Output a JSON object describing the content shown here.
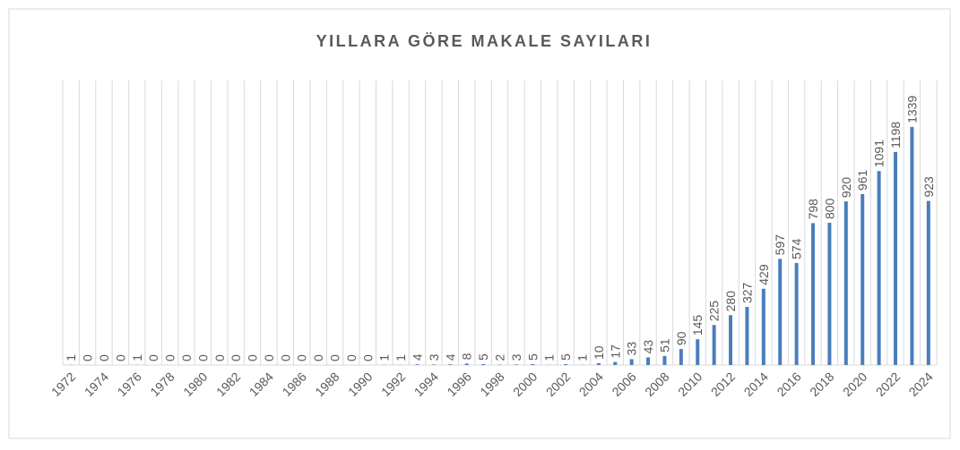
{
  "chart_data": {
    "type": "bar",
    "title": "YILLARA GÖRE MAKALE SAYILARI",
    "categories": [
      "1972",
      null,
      "1974",
      null,
      "1976",
      null,
      "1978",
      null,
      "1980",
      null,
      "1982",
      null,
      "1984",
      null,
      "1986",
      null,
      "1988",
      null,
      "1990",
      null,
      "1992",
      null,
      "1994",
      null,
      "1996",
      null,
      "1998",
      null,
      "2000",
      null,
      "2002",
      null,
      "2004",
      null,
      "2006",
      null,
      "2008",
      null,
      "2010",
      null,
      "2012",
      null,
      "2014",
      null,
      "2016",
      null,
      "2018",
      null,
      "2020",
      null,
      "2022",
      null,
      "2024"
    ],
    "values": [
      1,
      0,
      0,
      0,
      1,
      0,
      0,
      0,
      0,
      0,
      0,
      0,
      0,
      0,
      0,
      0,
      0,
      0,
      0,
      1,
      1,
      4,
      3,
      4,
      8,
      5,
      2,
      3,
      5,
      1,
      5,
      1,
      10,
      17,
      33,
      43,
      51,
      90,
      145,
      225,
      280,
      327,
      429,
      597,
      574,
      798,
      800,
      920,
      961,
      1091,
      1198,
      1339,
      923
    ],
    "color": "#4a7ebb",
    "ylim": [
      0,
      1600
    ]
  }
}
